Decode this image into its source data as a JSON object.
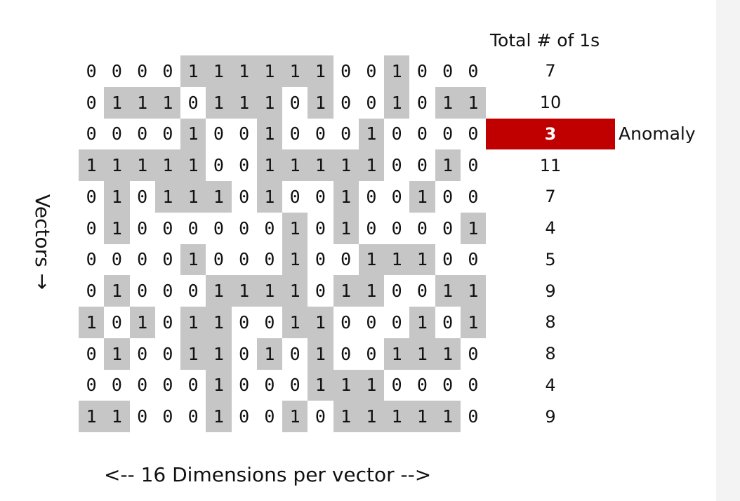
{
  "header": {
    "total_label": "Total # of 1s"
  },
  "labels": {
    "anomaly": "Anomaly",
    "vectors": "Vectors →",
    "dimensions": "<-- 16 Dimensions per vector -->"
  },
  "colors": {
    "one_background": "#c6c6c6",
    "anomaly_background": "#c00000",
    "anomaly_text": "#ffffff"
  },
  "matrix": {
    "rows": [
      {
        "values": [
          0,
          0,
          0,
          0,
          1,
          1,
          1,
          1,
          1,
          1,
          0,
          0,
          1,
          0,
          0,
          0
        ],
        "total": "7"
      },
      {
        "values": [
          0,
          1,
          1,
          1,
          0,
          1,
          1,
          1,
          0,
          1,
          0,
          0,
          1,
          0,
          1,
          1
        ],
        "total": "10"
      },
      {
        "values": [
          0,
          0,
          0,
          0,
          1,
          0,
          0,
          1,
          0,
          0,
          0,
          1,
          0,
          0,
          0,
          0
        ],
        "total": "3",
        "anomaly": true
      },
      {
        "values": [
          1,
          1,
          1,
          1,
          1,
          0,
          0,
          1,
          1,
          1,
          1,
          1,
          0,
          0,
          1,
          0
        ],
        "total": "11"
      },
      {
        "values": [
          0,
          1,
          0,
          1,
          1,
          1,
          0,
          1,
          0,
          0,
          1,
          0,
          0,
          1,
          0,
          0
        ],
        "total": "7"
      },
      {
        "values": [
          0,
          1,
          0,
          0,
          0,
          0,
          0,
          0,
          1,
          0,
          1,
          0,
          0,
          0,
          0,
          1
        ],
        "total": "4"
      },
      {
        "values": [
          0,
          0,
          0,
          0,
          1,
          0,
          0,
          0,
          1,
          0,
          0,
          1,
          1,
          1,
          0,
          0
        ],
        "total": "5"
      },
      {
        "values": [
          0,
          1,
          0,
          0,
          0,
          1,
          1,
          1,
          1,
          0,
          1,
          1,
          0,
          0,
          1,
          1
        ],
        "total": "9"
      },
      {
        "values": [
          1,
          0,
          1,
          0,
          1,
          1,
          0,
          0,
          1,
          1,
          0,
          0,
          0,
          1,
          0,
          1
        ],
        "total": "8"
      },
      {
        "values": [
          0,
          1,
          0,
          0,
          1,
          1,
          0,
          1,
          0,
          1,
          0,
          0,
          1,
          1,
          1,
          0
        ],
        "total": "8"
      },
      {
        "values": [
          0,
          0,
          0,
          0,
          0,
          1,
          0,
          0,
          0,
          1,
          1,
          1,
          0,
          0,
          0,
          0
        ],
        "total": "4"
      },
      {
        "values": [
          1,
          1,
          0,
          0,
          0,
          1,
          0,
          0,
          1,
          0,
          1,
          1,
          1,
          1,
          1,
          0
        ],
        "total": "9"
      }
    ]
  }
}
